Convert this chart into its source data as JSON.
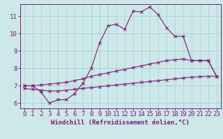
{
  "x": [
    0,
    1,
    2,
    3,
    4,
    5,
    6,
    7,
    8,
    9,
    10,
    11,
    12,
    13,
    14,
    15,
    16,
    17,
    18,
    19,
    20,
    21,
    22,
    23
  ],
  "line1_y": [
    7.0,
    7.0,
    6.65,
    6.0,
    6.2,
    6.2,
    6.55,
    7.15,
    8.0,
    9.45,
    10.45,
    10.55,
    10.25,
    11.3,
    11.25,
    11.55,
    11.1,
    10.35,
    9.85,
    9.85,
    8.45,
    8.45,
    8.45,
    7.55
  ],
  "line2_y": [
    7.0,
    7.0,
    7.05,
    7.1,
    7.15,
    7.2,
    7.3,
    7.4,
    7.55,
    7.65,
    7.75,
    7.85,
    7.95,
    8.05,
    8.15,
    8.25,
    8.35,
    8.45,
    8.5,
    8.55,
    8.45,
    8.45,
    8.45,
    7.55
  ],
  "line3_y": [
    6.85,
    6.8,
    6.75,
    6.7,
    6.7,
    6.75,
    6.8,
    6.85,
    6.9,
    6.95,
    7.0,
    7.05,
    7.1,
    7.15,
    7.2,
    7.25,
    7.3,
    7.35,
    7.4,
    7.45,
    7.5,
    7.52,
    7.55,
    7.55
  ],
  "color": "#7b1a7b",
  "bg_color": "#cce8e8",
  "grid_color": "#aacccc",
  "ylim": [
    5.7,
    11.7
  ],
  "xlim": [
    -0.5,
    23.5
  ],
  "yticks": [
    6,
    7,
    8,
    9,
    10,
    11
  ],
  "xticks": [
    0,
    1,
    2,
    3,
    4,
    5,
    6,
    7,
    8,
    9,
    10,
    11,
    12,
    13,
    14,
    15,
    16,
    17,
    18,
    19,
    20,
    21,
    22,
    23
  ],
  "xlabel": "Windchill (Refroidissement éolien,°C)",
  "font_size": 6.5
}
